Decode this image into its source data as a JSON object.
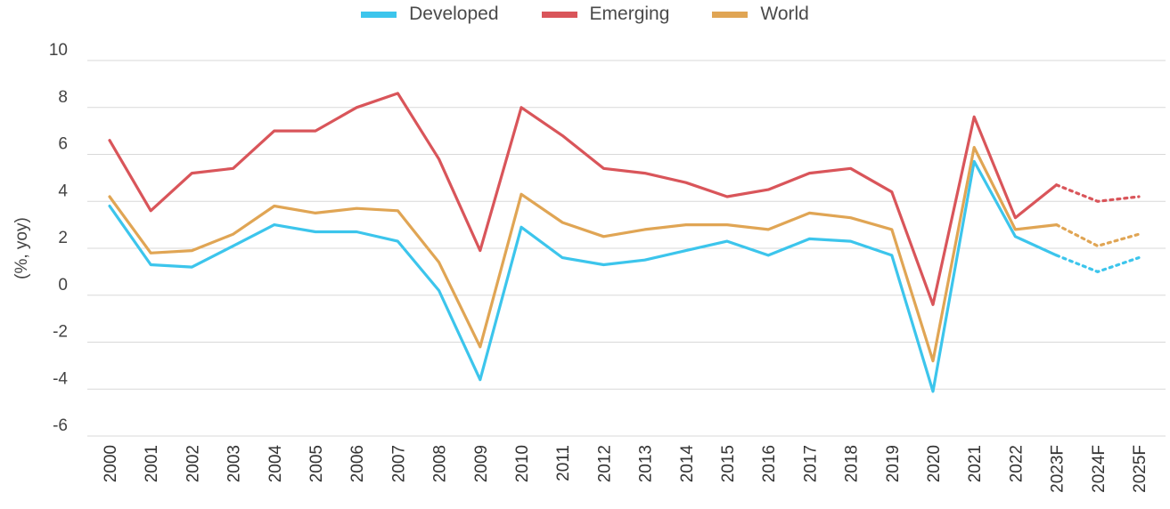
{
  "chart_data": {
    "type": "line",
    "ylabel": "(%, yoy)",
    "ylim": [
      -6,
      10
    ],
    "yticks": [
      10,
      8,
      6,
      4,
      2,
      0,
      -2,
      -4,
      -6
    ],
    "categories": [
      "2000",
      "2001",
      "2002",
      "2003",
      "2004",
      "2005",
      "2006",
      "2007",
      "2008",
      "2009",
      "2010",
      "2011",
      "2012",
      "2013",
      "2014",
      "2015",
      "2016",
      "2017",
      "2018",
      "2019",
      "2020",
      "2021",
      "2022",
      "2023F",
      "2024F",
      "2025F"
    ],
    "forecast_start_index": 23,
    "grid": "horizontal",
    "legend_position": "top-center",
    "series": [
      {
        "name": "Developed",
        "color": "#3cc5ec",
        "values": [
          3.8,
          1.3,
          1.2,
          2.1,
          3.0,
          2.7,
          2.7,
          2.3,
          0.2,
          -3.6,
          2.9,
          1.6,
          1.3,
          1.5,
          1.9,
          2.3,
          1.7,
          2.4,
          2.3,
          1.7,
          -4.1,
          5.7,
          2.5,
          1.7,
          1.0,
          1.6
        ]
      },
      {
        "name": "Emerging",
        "color": "#d9555a",
        "values": [
          6.6,
          3.6,
          5.2,
          5.4,
          7.0,
          7.0,
          8.0,
          8.6,
          5.8,
          1.9,
          8.0,
          6.8,
          5.4,
          5.2,
          4.8,
          4.2,
          4.5,
          5.2,
          5.4,
          4.4,
          -0.4,
          7.6,
          3.3,
          4.7,
          4.0,
          4.2
        ]
      },
      {
        "name": "World",
        "color": "#e0a554",
        "values": [
          4.2,
          1.8,
          1.9,
          2.6,
          3.8,
          3.5,
          3.7,
          3.6,
          1.4,
          -2.2,
          4.3,
          3.1,
          2.5,
          2.8,
          3.0,
          3.0,
          2.8,
          3.5,
          3.3,
          2.8,
          -2.8,
          6.3,
          2.8,
          3.0,
          2.1,
          2.6
        ]
      }
    ]
  }
}
